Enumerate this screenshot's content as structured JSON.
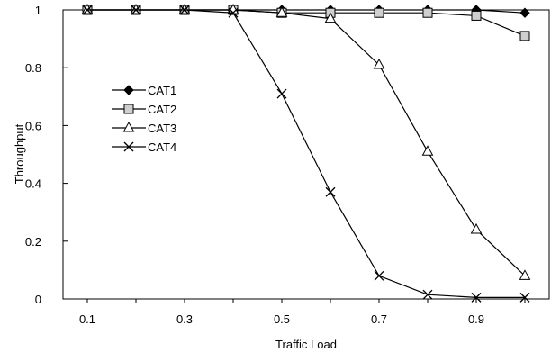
{
  "chart_data": {
    "type": "line",
    "xlabel": "Traffic Load",
    "ylabel": "Throughput",
    "x": [
      0.1,
      0.2,
      0.3,
      0.4,
      0.5,
      0.6,
      0.7,
      0.8,
      0.9,
      1.0
    ],
    "xlim": [
      0.05,
      1.05
    ],
    "ylim": [
      0,
      1
    ],
    "x_tick_labels": [
      {
        "value": 0.1,
        "label": "0.1"
      },
      {
        "value": 0.3,
        "label": "0.3"
      },
      {
        "value": 0.5,
        "label": "0.5"
      },
      {
        "value": 0.7,
        "label": "0.7"
      },
      {
        "value": 0.9,
        "label": "0.9"
      }
    ],
    "y_tick_labels": [
      {
        "value": 0,
        "label": "0"
      },
      {
        "value": 0.2,
        "label": "0.2"
      },
      {
        "value": 0.4,
        "label": "0.4"
      },
      {
        "value": 0.6,
        "label": "0.6"
      },
      {
        "value": 0.8,
        "label": "0.8"
      },
      {
        "value": 1,
        "label": "1"
      }
    ],
    "grid": false,
    "legend_position": "left",
    "series": [
      {
        "name": "CAT1",
        "marker": "diamond-filled",
        "values": [
          1.0,
          1.0,
          1.0,
          1.0,
          1.0,
          1.0,
          1.0,
          1.0,
          1.0,
          0.99
        ]
      },
      {
        "name": "CAT2",
        "marker": "square-gray",
        "values": [
          1.0,
          1.0,
          1.0,
          1.0,
          0.99,
          0.99,
          0.99,
          0.99,
          0.98,
          0.91
        ]
      },
      {
        "name": "CAT3",
        "marker": "triangle-open",
        "values": [
          1.0,
          1.0,
          1.0,
          1.0,
          0.99,
          0.97,
          0.81,
          0.51,
          0.24,
          0.08
        ]
      },
      {
        "name": "CAT4",
        "marker": "x",
        "values": [
          1.0,
          1.0,
          1.0,
          0.99,
          0.71,
          0.37,
          0.08,
          0.015,
          0.005,
          0.005
        ]
      }
    ]
  }
}
